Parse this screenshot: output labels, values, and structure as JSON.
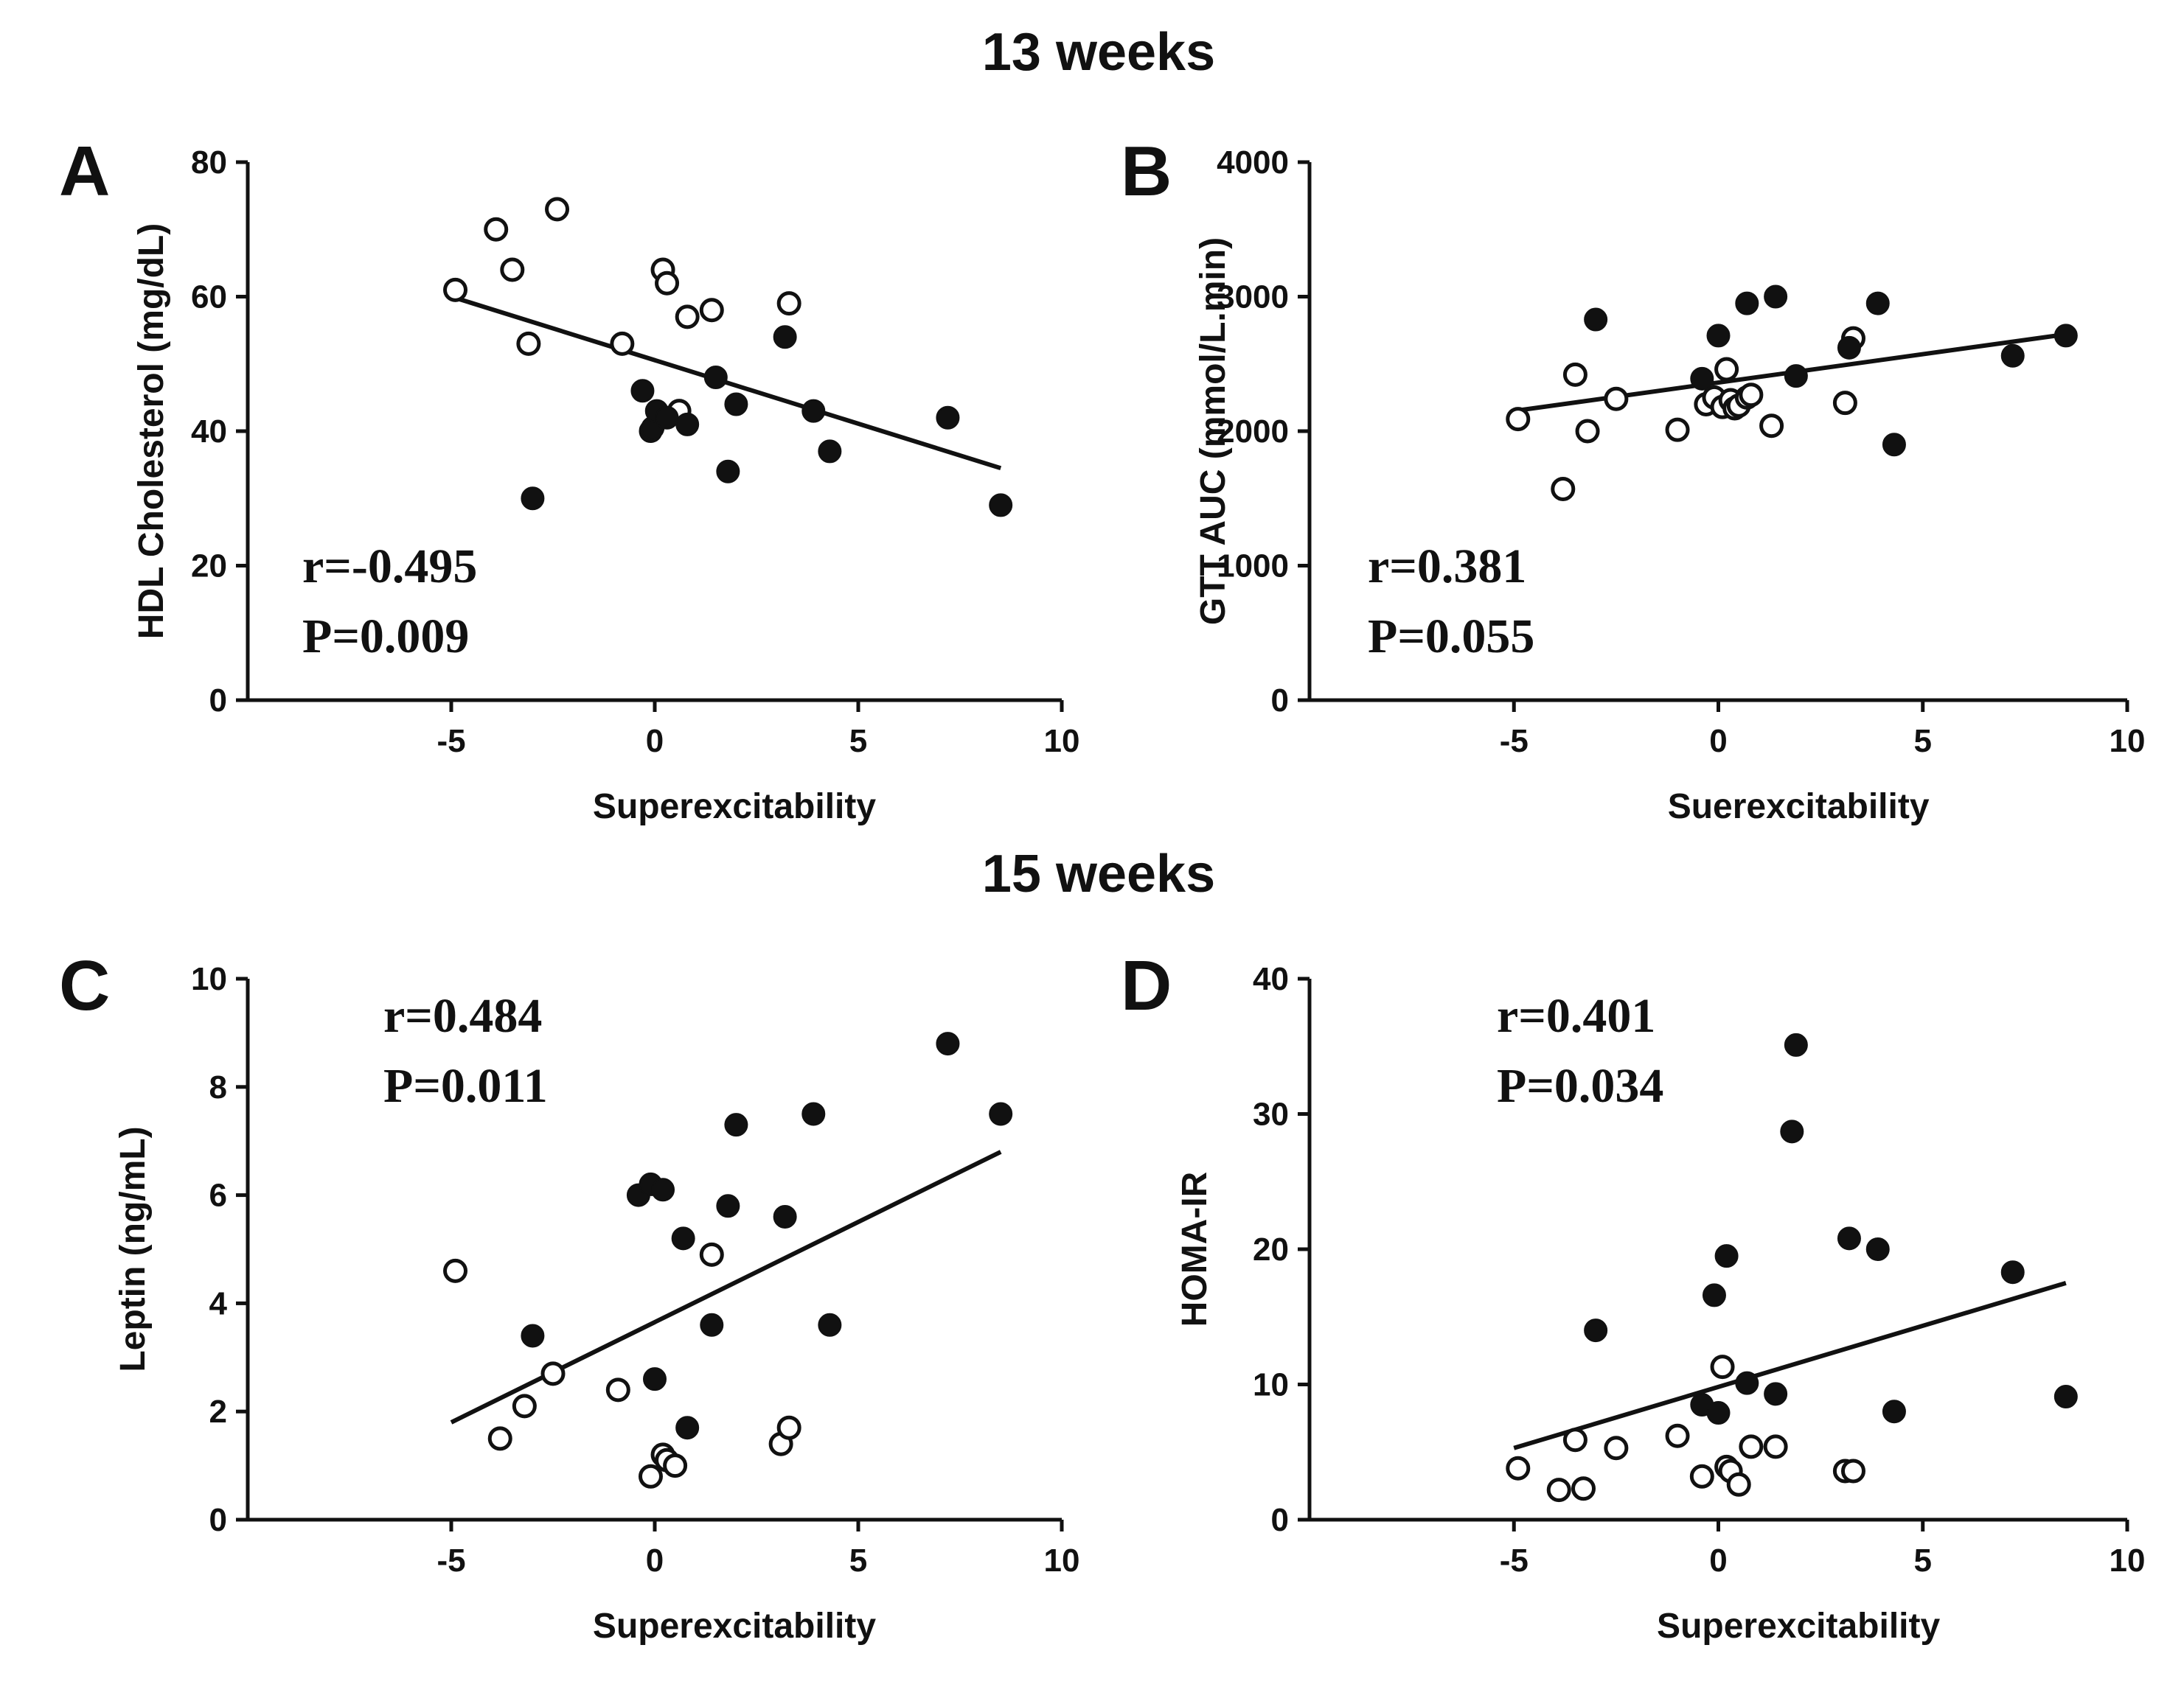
{
  "section_titles": [
    "13 weeks",
    "15 weeks"
  ],
  "chart_data": [
    {
      "panel": "A",
      "type": "scatter",
      "section": "13 weeks",
      "xlabel": "Superexcitability",
      "ylabel": "HDL Cholesterol (mg/dL)",
      "xlim": [
        -10,
        10
      ],
      "ylim": [
        0,
        80
      ],
      "xticks": [
        -5,
        0,
        5,
        10
      ],
      "yticks": [
        0,
        20,
        40,
        60,
        80
      ],
      "stats": {
        "r": "r=-0.495",
        "p": "P=0.009"
      },
      "trendline": {
        "x": [
          -5,
          8.5
        ],
        "y": [
          60,
          34.5
        ]
      },
      "series": [
        {
          "name": "open",
          "marker": "open-circle",
          "x": [
            -4.9,
            -3.9,
            -3.5,
            -2.4,
            -3.1,
            -0.8,
            0.2,
            0.3,
            0.8,
            1.4,
            3.3,
            0.6
          ],
          "y": [
            61,
            70,
            64,
            73,
            53,
            53,
            64,
            62,
            57,
            58,
            59,
            43
          ]
        },
        {
          "name": "filled",
          "marker": "filled-circle",
          "x": [
            -3.0,
            -0.3,
            -0.1,
            -0.05,
            0.05,
            0.3,
            0.8,
            1.5,
            1.8,
            2.0,
            3.2,
            3.9,
            4.3,
            7.2,
            8.5
          ],
          "y": [
            30,
            46,
            40,
            40.5,
            43,
            42,
            41,
            48,
            34,
            44,
            54,
            43,
            37,
            42,
            29
          ]
        }
      ]
    },
    {
      "panel": "B",
      "type": "scatter",
      "section": "13 weeks",
      "xlabel": "Suerexcitability",
      "ylabel": "GTT AUC (mmol/L.min)",
      "xlim": [
        -10,
        10
      ],
      "ylim": [
        0,
        4000
      ],
      "xticks": [
        -5,
        0,
        5,
        10
      ],
      "yticks": [
        0,
        1000,
        2000,
        3000,
        4000
      ],
      "stats": {
        "r": "r=0.381",
        "p": "P=0.055"
      },
      "trendline": {
        "x": [
          -5,
          8.5
        ],
        "y": [
          2150,
          2720
        ]
      },
      "series": [
        {
          "name": "open",
          "marker": "open-circle",
          "x": [
            -4.9,
            -3.8,
            -3.5,
            -3.2,
            -2.5,
            -1.0,
            -0.3,
            -0.1,
            0.1,
            0.2,
            0.3,
            0.4,
            0.5,
            0.7,
            0.8,
            1.3,
            3.1,
            3.3
          ],
          "y": [
            2090,
            1570,
            2420,
            2000,
            2240,
            2010,
            2200,
            2250,
            2180,
            2460,
            2230,
            2170,
            2190,
            2250,
            2270,
            2040,
            2210,
            2690
          ]
        },
        {
          "name": "filled",
          "marker": "filled-circle",
          "x": [
            -3.0,
            -0.4,
            0.0,
            0.7,
            1.4,
            1.9,
            3.2,
            3.9,
            4.3,
            7.2,
            8.5
          ],
          "y": [
            2830,
            2390,
            2710,
            2950,
            3000,
            2410,
            2620,
            2950,
            1900,
            2560,
            2710
          ]
        }
      ]
    },
    {
      "panel": "C",
      "type": "scatter",
      "section": "15 weeks",
      "xlabel": "Superexcitability",
      "ylabel": "Leptin (ng/mL)",
      "xlim": [
        -10,
        10
      ],
      "ylim": [
        0,
        10
      ],
      "xticks": [
        -5,
        0,
        5,
        10
      ],
      "yticks": [
        0,
        2,
        4,
        6,
        8,
        10
      ],
      "stats": {
        "r": "r=0.484",
        "p": "P=0.011"
      },
      "trendline": {
        "x": [
          -5,
          8.5
        ],
        "y": [
          1.8,
          6.8
        ]
      },
      "series": [
        {
          "name": "open",
          "marker": "open-circle",
          "x": [
            -4.9,
            -3.8,
            -3.2,
            -2.5,
            -0.9,
            -0.1,
            0.2,
            0.3,
            0.5,
            1.4,
            3.1,
            3.3
          ],
          "y": [
            4.6,
            1.5,
            2.1,
            2.7,
            2.4,
            0.8,
            1.2,
            1.1,
            1.0,
            4.9,
            1.4,
            1.7
          ]
        },
        {
          "name": "filled",
          "marker": "filled-circle",
          "x": [
            -3.0,
            -0.4,
            -0.1,
            0.2,
            0.7,
            1.4,
            1.8,
            2.0,
            3.2,
            3.9,
            4.3,
            7.2,
            8.5,
            0.0,
            0.8
          ],
          "y": [
            3.4,
            6.0,
            6.2,
            6.1,
            5.2,
            3.6,
            5.8,
            7.3,
            5.6,
            7.5,
            3.6,
            8.8,
            7.5,
            2.6,
            1.7
          ]
        }
      ]
    },
    {
      "panel": "D",
      "type": "scatter",
      "section": "15 weeks",
      "xlabel": "Superexcitability",
      "ylabel": "HOMA-IR",
      "xlim": [
        -10,
        10
      ],
      "ylim": [
        0,
        40
      ],
      "xticks": [
        -5,
        0,
        5,
        10
      ],
      "yticks": [
        0,
        10,
        20,
        30,
        40
      ],
      "stats": {
        "r": "r=0.401",
        "p": "P=0.034"
      },
      "trendline": {
        "x": [
          -5,
          8.5
        ],
        "y": [
          5.3,
          17.5
        ]
      },
      "series": [
        {
          "name": "open",
          "marker": "open-circle",
          "x": [
            -4.9,
            -3.9,
            -3.5,
            -3.3,
            -2.5,
            -1.0,
            -0.4,
            0.1,
            0.2,
            0.3,
            0.5,
            0.8,
            1.4,
            3.1,
            3.3
          ],
          "y": [
            3.8,
            2.2,
            5.9,
            2.3,
            5.3,
            6.2,
            3.2,
            11.3,
            3.9,
            3.6,
            2.6,
            5.4,
            5.4,
            3.6,
            3.6
          ]
        },
        {
          "name": "filled",
          "marker": "filled-circle",
          "x": [
            -3.0,
            -0.4,
            -0.1,
            0.0,
            0.2,
            0.7,
            1.4,
            1.8,
            1.9,
            3.2,
            3.9,
            4.3,
            7.2,
            8.5
          ],
          "y": [
            14.0,
            8.5,
            16.6,
            7.9,
            19.5,
            10.1,
            9.3,
            28.7,
            35.1,
            20.8,
            20.0,
            8.0,
            18.3,
            9.1
          ]
        }
      ]
    }
  ]
}
